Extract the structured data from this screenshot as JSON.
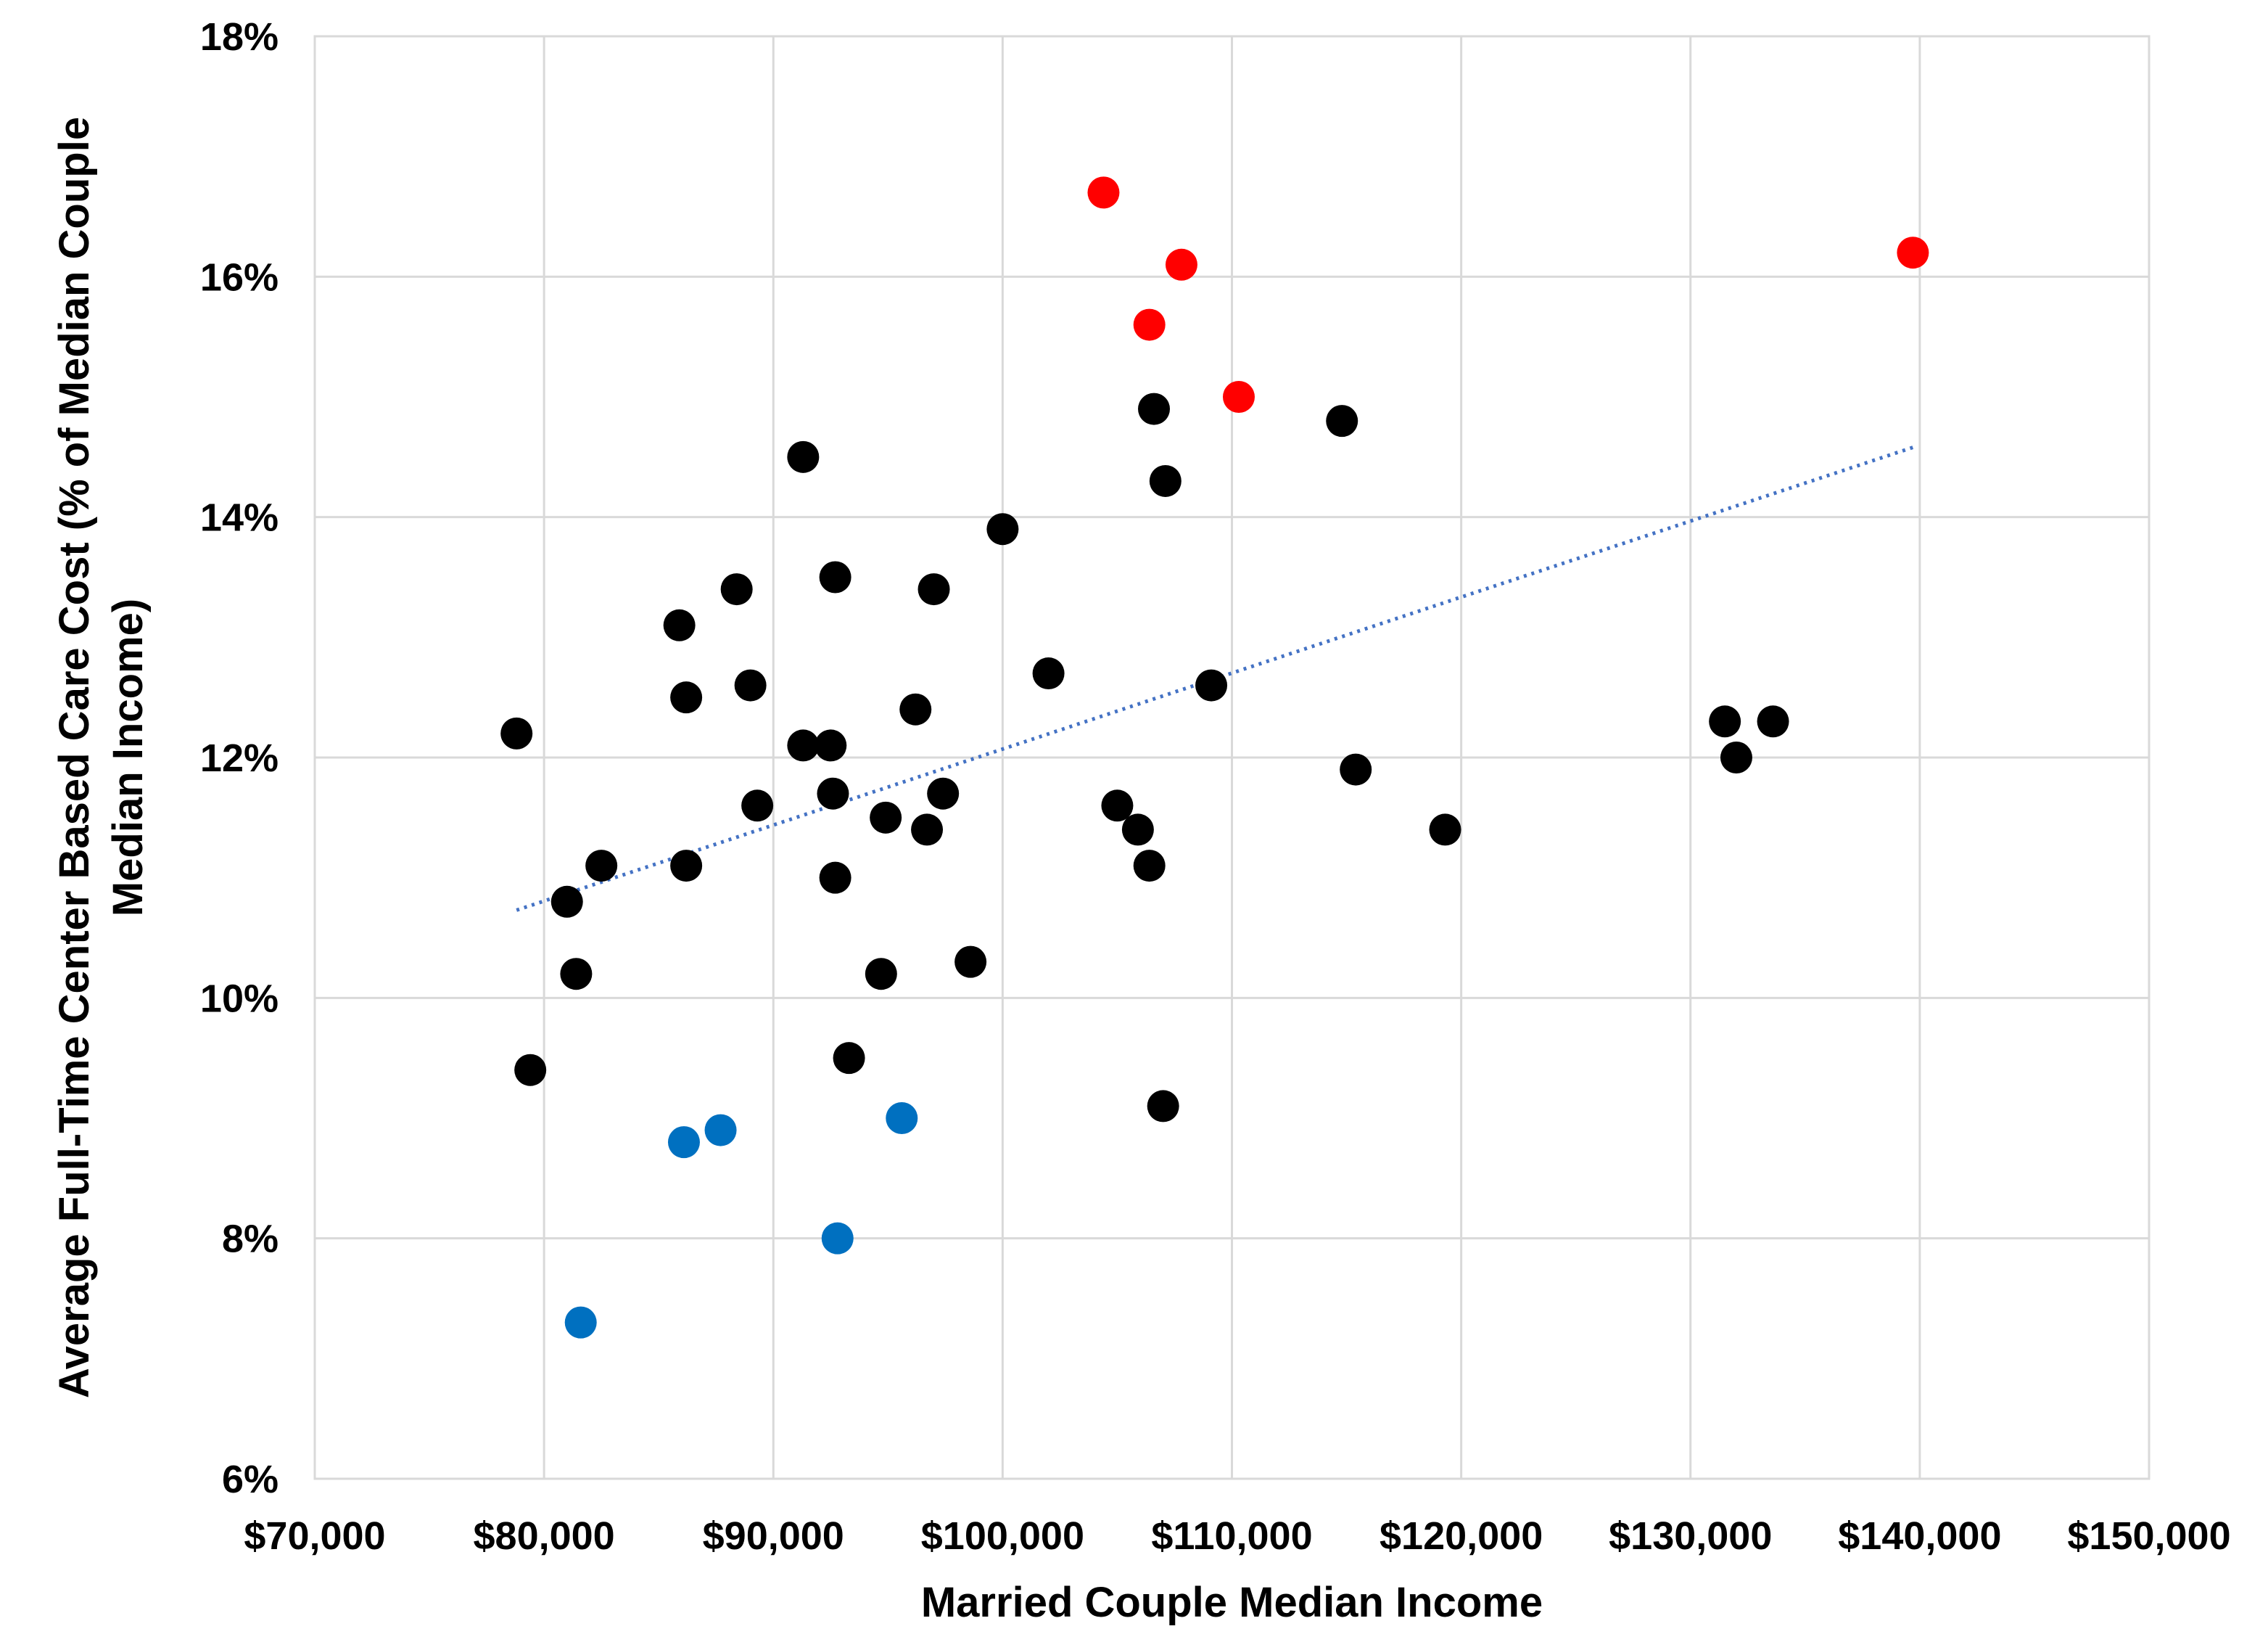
{
  "chart_data": {
    "type": "scatter",
    "xlabel": "Married Couple Median Income",
    "ylabel_lines": [
      "Average Full-Time Center Based Care Cost (% of Median Couple",
      "Median Income)"
    ],
    "xlim": [
      70000,
      150000
    ],
    "ylim": [
      6,
      18
    ],
    "x_ticks": [
      70000,
      80000,
      90000,
      100000,
      110000,
      120000,
      130000,
      140000,
      150000
    ],
    "x_tick_labels": [
      "$70,000",
      "$80,000",
      "$90,000",
      "$100,000",
      "$110,000",
      "$120,000",
      "$130,000",
      "$140,000",
      "$150,000"
    ],
    "y_ticks": [
      6,
      8,
      10,
      12,
      14,
      16,
      18
    ],
    "y_tick_labels": [
      "6%",
      "8%",
      "10%",
      "12%",
      "14%",
      "16%",
      "18%"
    ],
    "grid": true,
    "series": [
      {
        "color": "#000000",
        "points": [
          [
            78800,
            12.2
          ],
          [
            79400,
            9.4
          ],
          [
            81000,
            10.8
          ],
          [
            81400,
            10.2
          ],
          [
            82500,
            11.1
          ],
          [
            85900,
            13.1
          ],
          [
            86200,
            12.5
          ],
          [
            86200,
            11.1
          ],
          [
            88400,
            13.4
          ],
          [
            89000,
            12.6
          ],
          [
            89300,
            11.6
          ],
          [
            91300,
            14.5
          ],
          [
            91300,
            12.1
          ],
          [
            92500,
            12.1
          ],
          [
            92600,
            11.7
          ],
          [
            92700,
            13.5
          ],
          [
            92700,
            11.0
          ],
          [
            93300,
            9.5
          ],
          [
            94700,
            10.2
          ],
          [
            94900,
            11.5
          ],
          [
            96200,
            12.4
          ],
          [
            96700,
            11.4
          ],
          [
            97000,
            13.4
          ],
          [
            97400,
            11.7
          ],
          [
            98600,
            10.3
          ],
          [
            100000,
            13.9
          ],
          [
            102000,
            12.7
          ],
          [
            105000,
            11.6
          ],
          [
            105900,
            11.4
          ],
          [
            106400,
            11.1
          ],
          [
            106600,
            14.9
          ],
          [
            107000,
            9.1
          ],
          [
            107100,
            14.3
          ],
          [
            109100,
            12.6
          ],
          [
            114800,
            14.8
          ],
          [
            115400,
            11.9
          ],
          [
            119300,
            11.4
          ],
          [
            131500,
            12.3
          ],
          [
            132000,
            12.0
          ],
          [
            133600,
            12.3
          ]
        ]
      },
      {
        "color": "#ff0000",
        "points": [
          [
            104400,
            16.7
          ],
          [
            106400,
            15.6
          ],
          [
            107800,
            16.1
          ],
          [
            110300,
            15.0
          ],
          [
            139700,
            16.2
          ]
        ]
      },
      {
        "color": "#0070c0",
        "points": [
          [
            81600,
            7.3
          ],
          [
            86100,
            8.8
          ],
          [
            87700,
            8.9
          ],
          [
            92800,
            8.0
          ],
          [
            95600,
            9.0
          ]
        ]
      }
    ],
    "trendline": {
      "style": "dotted",
      "color": "#4472c4",
      "points": [
        [
          78800,
          10.73
        ],
        [
          139700,
          14.58
        ]
      ]
    }
  }
}
